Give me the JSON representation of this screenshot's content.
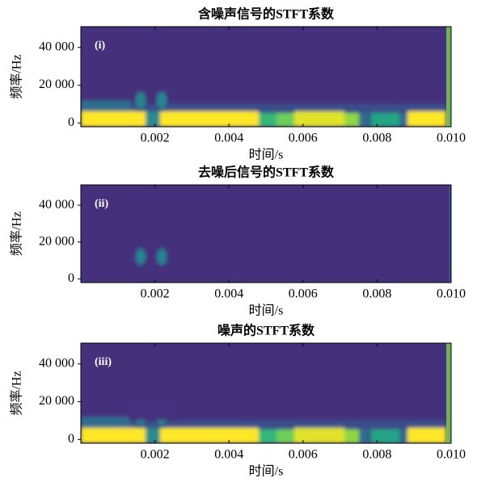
{
  "chart_data": [
    {
      "type": "spectrogram",
      "title": "含噪声信号的STFT系数",
      "annotation": "(i)",
      "xlabel": "时间/s",
      "ylabel": "频率/Hz",
      "xlim": [
        0,
        0.01
      ],
      "ylim": [
        -2000,
        51000
      ],
      "xticks": [
        0.002,
        0.004,
        0.006,
        0.008,
        {
          "value": 0.01,
          "label": "0.010"
        }
      ],
      "yticks": [
        0,
        {
          "value": 20000,
          "label": "20 000"
        },
        {
          "value": 40000,
          "label": "40 000"
        }
      ]
    },
    {
      "type": "spectrogram",
      "title": "去噪后信号的STFT系数",
      "annotation": "(ii)",
      "xlabel": "时间/s",
      "ylabel": "频率/Hz",
      "xlim": [
        0,
        0.01
      ],
      "ylim": [
        -2000,
        51000
      ],
      "xticks": [
        0.002,
        0.004,
        0.006,
        0.008,
        {
          "value": 0.01,
          "label": "0.010"
        }
      ],
      "yticks": [
        0,
        {
          "value": 20000,
          "label": "20 000"
        },
        {
          "value": 40000,
          "label": "40 000"
        }
      ]
    },
    {
      "type": "spectrogram",
      "title": "噪声的STFT系数",
      "annotation": "(iii)",
      "xlabel": "时间/s",
      "ylabel": "频率/Hz",
      "xlim": [
        0,
        0.01
      ],
      "ylim": [
        -2000,
        51000
      ],
      "xticks": [
        0.002,
        0.004,
        0.006,
        0.008,
        {
          "value": 0.01,
          "label": "0.010"
        }
      ],
      "yticks": [
        0,
        {
          "value": 20000,
          "label": "20 000"
        },
        {
          "value": 40000,
          "label": "40 000"
        }
      ]
    }
  ]
}
